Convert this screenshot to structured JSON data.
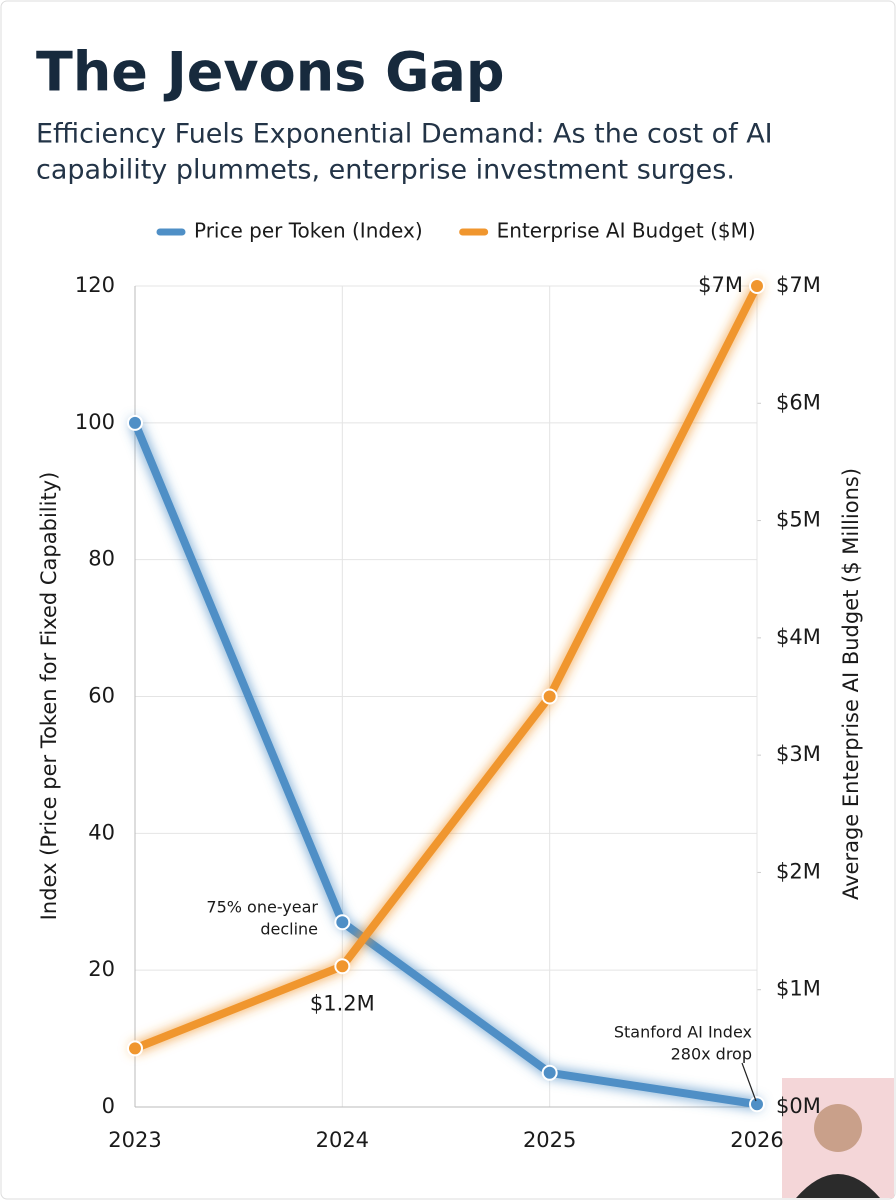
{
  "chart_data": {
    "type": "line",
    "title": "The Jevons Gap",
    "subtitle": [
      "Efficiency Fuels Exponential Demand: As the cost of AI",
      "capability plummets, enterprise investment surges."
    ],
    "categories": [
      "2023",
      "2024",
      "2025",
      "2026"
    ],
    "series": [
      {
        "name": "Price per Token (Index)",
        "color": "#4f8fc6",
        "values": [
          100,
          27,
          5,
          0.4
        ]
      },
      {
        "name": "Enterprise AI Budget ($M)",
        "color": "#f0962e",
        "axis": "y2",
        "values": [
          0.5,
          1.2,
          3.5,
          7
        ],
        "value_labels": [
          null,
          "$1.2M",
          null,
          "$7M"
        ]
      }
    ],
    "ylabel": "Index (Price per Token for Fixed Capability)",
    "y2label": "Average Enterprise AI Budget ($ Millions)",
    "ylim": [
      0,
      120
    ],
    "yticks": [
      0,
      20,
      40,
      60,
      80,
      100,
      120
    ],
    "y2lim": [
      0,
      7
    ],
    "y2ticks": [
      {
        "value": 0,
        "label": "$0M"
      },
      {
        "value": 1,
        "label": "$1M"
      },
      {
        "value": 2,
        "label": "$2M"
      },
      {
        "value": 3,
        "label": "$3M"
      },
      {
        "value": 4,
        "label": "$4M"
      },
      {
        "value": 5,
        "label": "$5M"
      },
      {
        "value": 6,
        "label": "$6M"
      },
      {
        "value": 7,
        "label": "$7M"
      }
    ],
    "grid": true,
    "legend": "top",
    "annotations": [
      {
        "lines": [
          "75% one-year",
          "decline"
        ]
      },
      {
        "lines": [
          "Stanford AI Index",
          "280x drop"
        ]
      }
    ]
  }
}
